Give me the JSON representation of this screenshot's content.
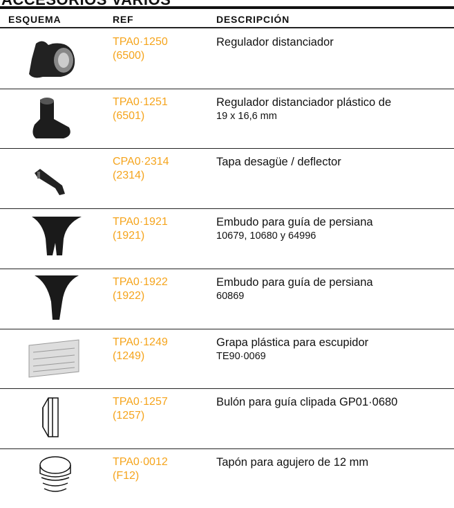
{
  "header": {
    "title": "ACCESORIOS VARIOS"
  },
  "table": {
    "headers": [
      "ESQUEMA",
      "REF",
      "DESCRIPCIÓN"
    ],
    "rows": [
      {
        "ref": "TPA0·1250",
        "code": "(6500)",
        "description": [
          "Regulador distanciador"
        ]
      },
      {
        "ref": "TPA0·1251",
        "code": "(6501)",
        "description": [
          "Regulador distanciador plástico de",
          "19 x 16,6 mm"
        ]
      },
      {
        "ref": "CPA0·2314",
        "code": "(2314)",
        "description": [
          "Tapa desagüe / deflector"
        ]
      },
      {
        "ref": "TPA0·1921",
        "code": "(1921)",
        "description": [
          "Embudo para guía de persiana",
          "10679, 10680 y 64996"
        ]
      },
      {
        "ref": "TPA0·1922",
        "code": "(1922)",
        "description": [
          "Embudo para guía de persiana",
          "60869"
        ]
      },
      {
        "ref": "TPA0·1249",
        "code": "(1249)",
        "description": [
          "Grapa plástica para escupidor",
          "TE90·0069"
        ]
      },
      {
        "ref": "TPA0·1257",
        "code": "(1257)",
        "description": [
          "Bulón para guía clipada GP01·0680"
        ]
      },
      {
        "ref": "TPA0·0012",
        "code": "(F12)",
        "description": [
          "Tapón para agujero de 12 mm"
        ]
      }
    ]
  }
}
